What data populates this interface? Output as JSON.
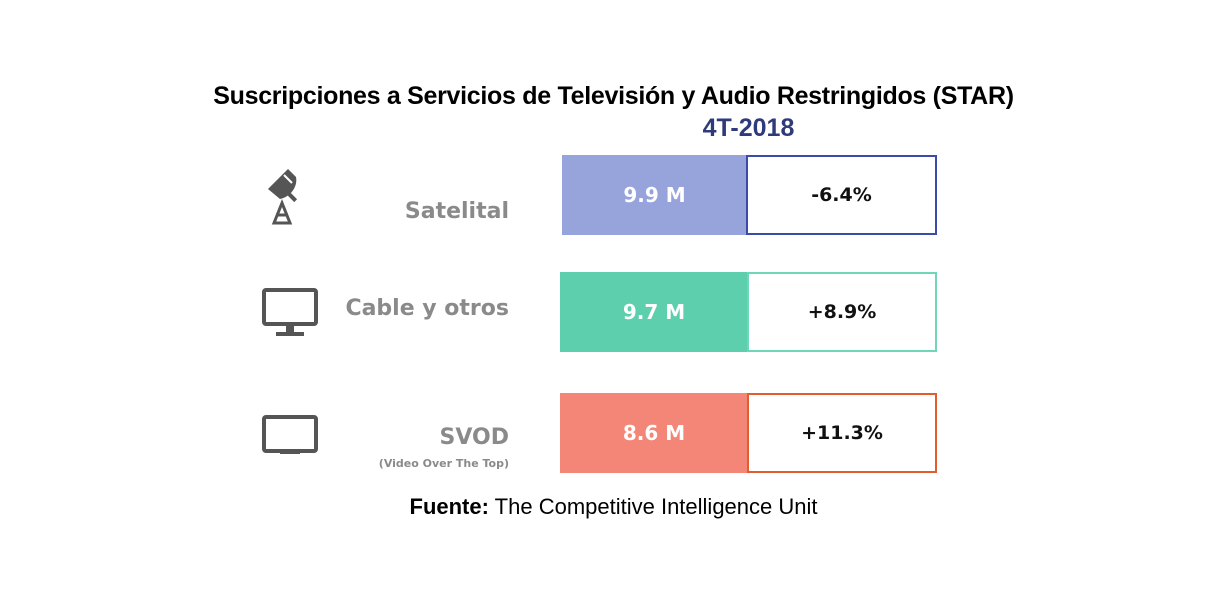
{
  "chart_data": {
    "type": "bar",
    "title": "Suscripciones a Servicios de Televisión y Audio Restringidos (STAR)",
    "subtitle": "4T-2018",
    "categories": [
      "Satelital",
      "Cable y otros",
      "SVOD"
    ],
    "category_sublabels": [
      "",
      "",
      "(Video Over The Top)"
    ],
    "values": [
      9.9,
      9.7,
      8.6
    ],
    "value_labels": [
      "9.9 M",
      "9.7 M",
      "8.6 M"
    ],
    "changes": [
      "-6.4%",
      "+8.9%",
      "+11.3%"
    ],
    "icons": [
      "satellite-dish-icon",
      "monitor-icon",
      "tablet-icon"
    ],
    "colors": [
      "#97a4dc",
      "#5dcfac",
      "#f38677"
    ],
    "border_colors": [
      "#3d4ba8",
      "#6fd7b7",
      "#e25c2e"
    ]
  },
  "source": {
    "prefix": "Fuente:",
    "text": " The Competitive Intelligence Unit"
  }
}
